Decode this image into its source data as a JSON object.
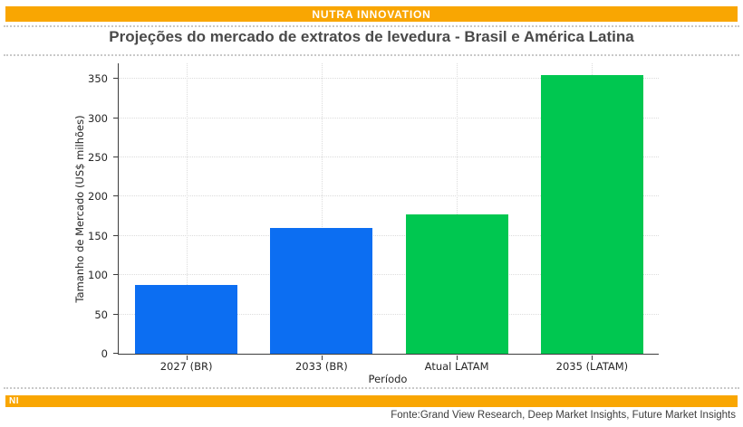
{
  "header": {
    "brand": "NUTRA INNOVATION"
  },
  "title": "Projeções do mercado de extratos de levedura - Brasil e América Latina",
  "footer": {
    "brand_abbrev": "NI",
    "source": "Fonte:Grand View Research, Deep Market Insights, Future Market Insights"
  },
  "colors": {
    "accent_orange": "#F9A602",
    "bar_blue": "#0C6EF2",
    "bar_green": "#00C750",
    "grid": "#DCDCDC",
    "axis": "#3D3D3D",
    "tick_text": "#262626",
    "title_text": "#4A4A4A"
  },
  "chart_data": {
    "type": "bar",
    "title": "Projeções do mercado de extratos de levedura - Brasil e América Latina",
    "categories": [
      "2027 (BR)",
      "2033 (BR)",
      "Atual LATAM",
      "2035 (LATAM)"
    ],
    "values": [
      88,
      160,
      177,
      355
    ],
    "bar_colors": [
      "#0C6EF2",
      "#0C6EF2",
      "#00C750",
      "#00C750"
    ],
    "xlabel": "Período",
    "ylabel": "Tamanho de Mercado (US$ milhões)",
    "yticks": [
      0,
      50,
      100,
      150,
      200,
      250,
      300,
      350
    ],
    "ylim": [
      0,
      371
    ],
    "grid": "dotted, horizontal and vertical",
    "legend": "none"
  }
}
